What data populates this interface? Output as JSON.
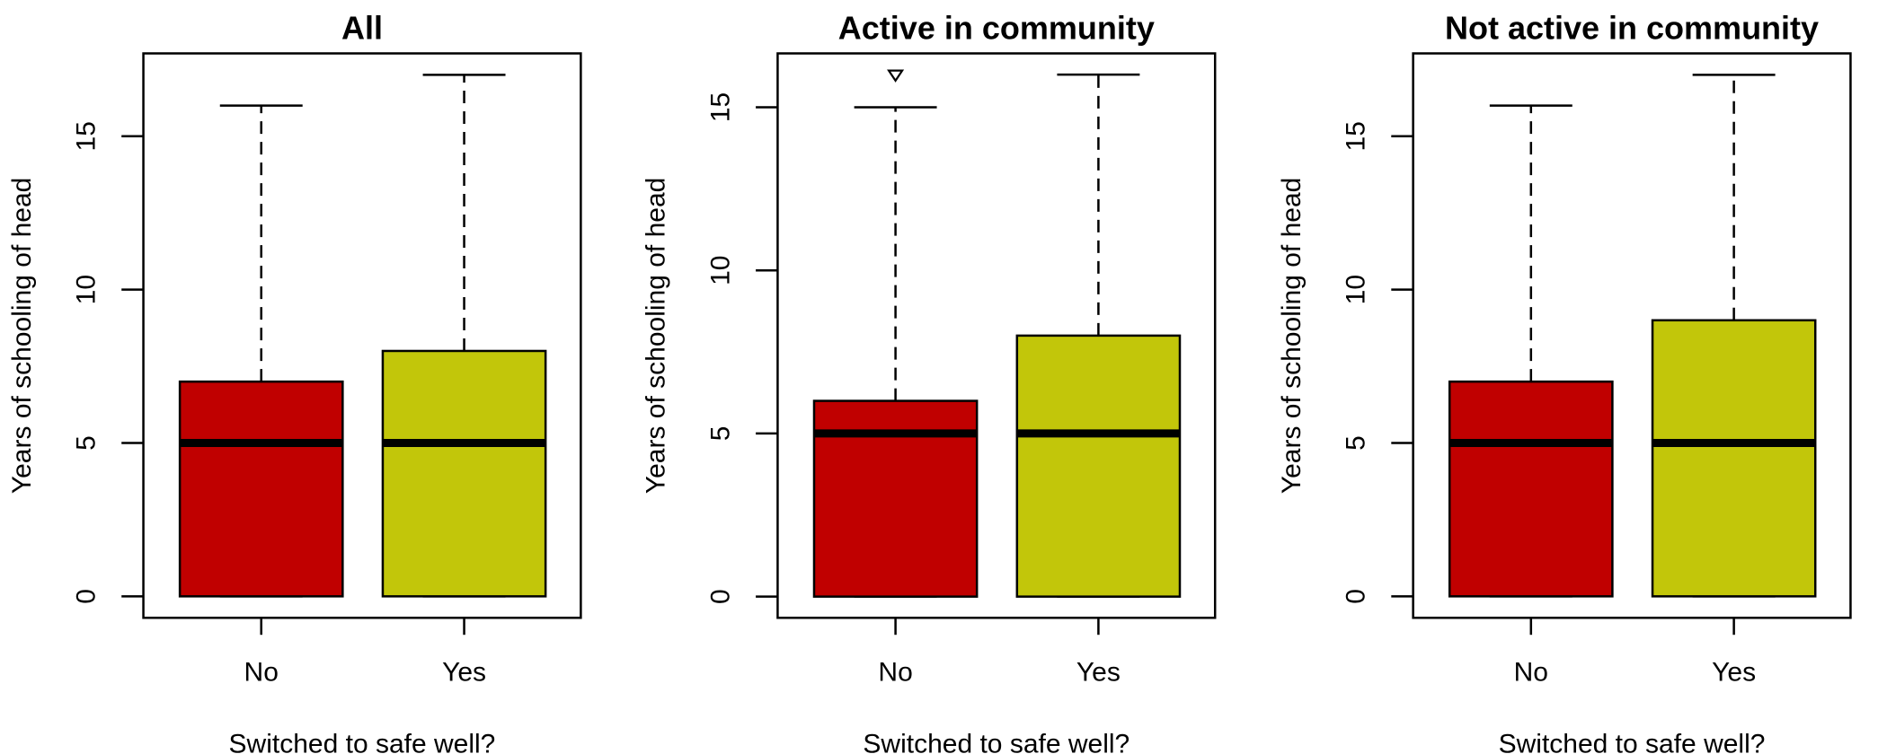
{
  "colors": {
    "No": "#c00000",
    "Yes": "#c2c60a",
    "outline": "#000000"
  },
  "chart_data": [
    {
      "type": "boxplot",
      "title": "All",
      "xlabel": "Switched to safe well?",
      "ylabel": "Years of schooling of head",
      "categories": [
        "No",
        "Yes"
      ],
      "yticks": [
        "0",
        "5",
        "10",
        "15"
      ],
      "ylim": [
        -0.7,
        17.7
      ],
      "grid": false,
      "boxes": [
        {
          "category": "No",
          "min": 0,
          "q1": 0,
          "median": 5,
          "q3": 7,
          "max": 16,
          "outliers": []
        },
        {
          "category": "Yes",
          "min": 0,
          "q1": 0,
          "median": 5,
          "q3": 8,
          "max": 17,
          "outliers": []
        }
      ]
    },
    {
      "type": "boxplot",
      "title": "Active in community",
      "xlabel": "Switched to safe well?",
      "ylabel": "Years of schooling of head",
      "categories": [
        "No",
        "Yes"
      ],
      "yticks": [
        "0",
        "5",
        "10",
        "15"
      ],
      "ylim": [
        -0.65,
        16.65
      ],
      "grid": false,
      "boxes": [
        {
          "category": "No",
          "min": 0,
          "q1": 0,
          "median": 5,
          "q3": 6,
          "max": 15,
          "outliers": [
            16
          ]
        },
        {
          "category": "Yes",
          "min": 0,
          "q1": 0,
          "median": 5,
          "q3": 8,
          "max": 16,
          "outliers": []
        }
      ]
    },
    {
      "type": "boxplot",
      "title": "Not active in community",
      "xlabel": "Switched to safe well?",
      "ylabel": "Years of schooling of head",
      "categories": [
        "No",
        "Yes"
      ],
      "yticks": [
        "0",
        "5",
        "10",
        "15"
      ],
      "ylim": [
        -0.7,
        17.7
      ],
      "grid": false,
      "boxes": [
        {
          "category": "No",
          "min": 0,
          "q1": 0,
          "median": 5,
          "q3": 7,
          "max": 16,
          "outliers": []
        },
        {
          "category": "Yes",
          "min": 0,
          "q1": 0,
          "median": 5,
          "q3": 9,
          "max": 17,
          "outliers": []
        }
      ]
    }
  ]
}
